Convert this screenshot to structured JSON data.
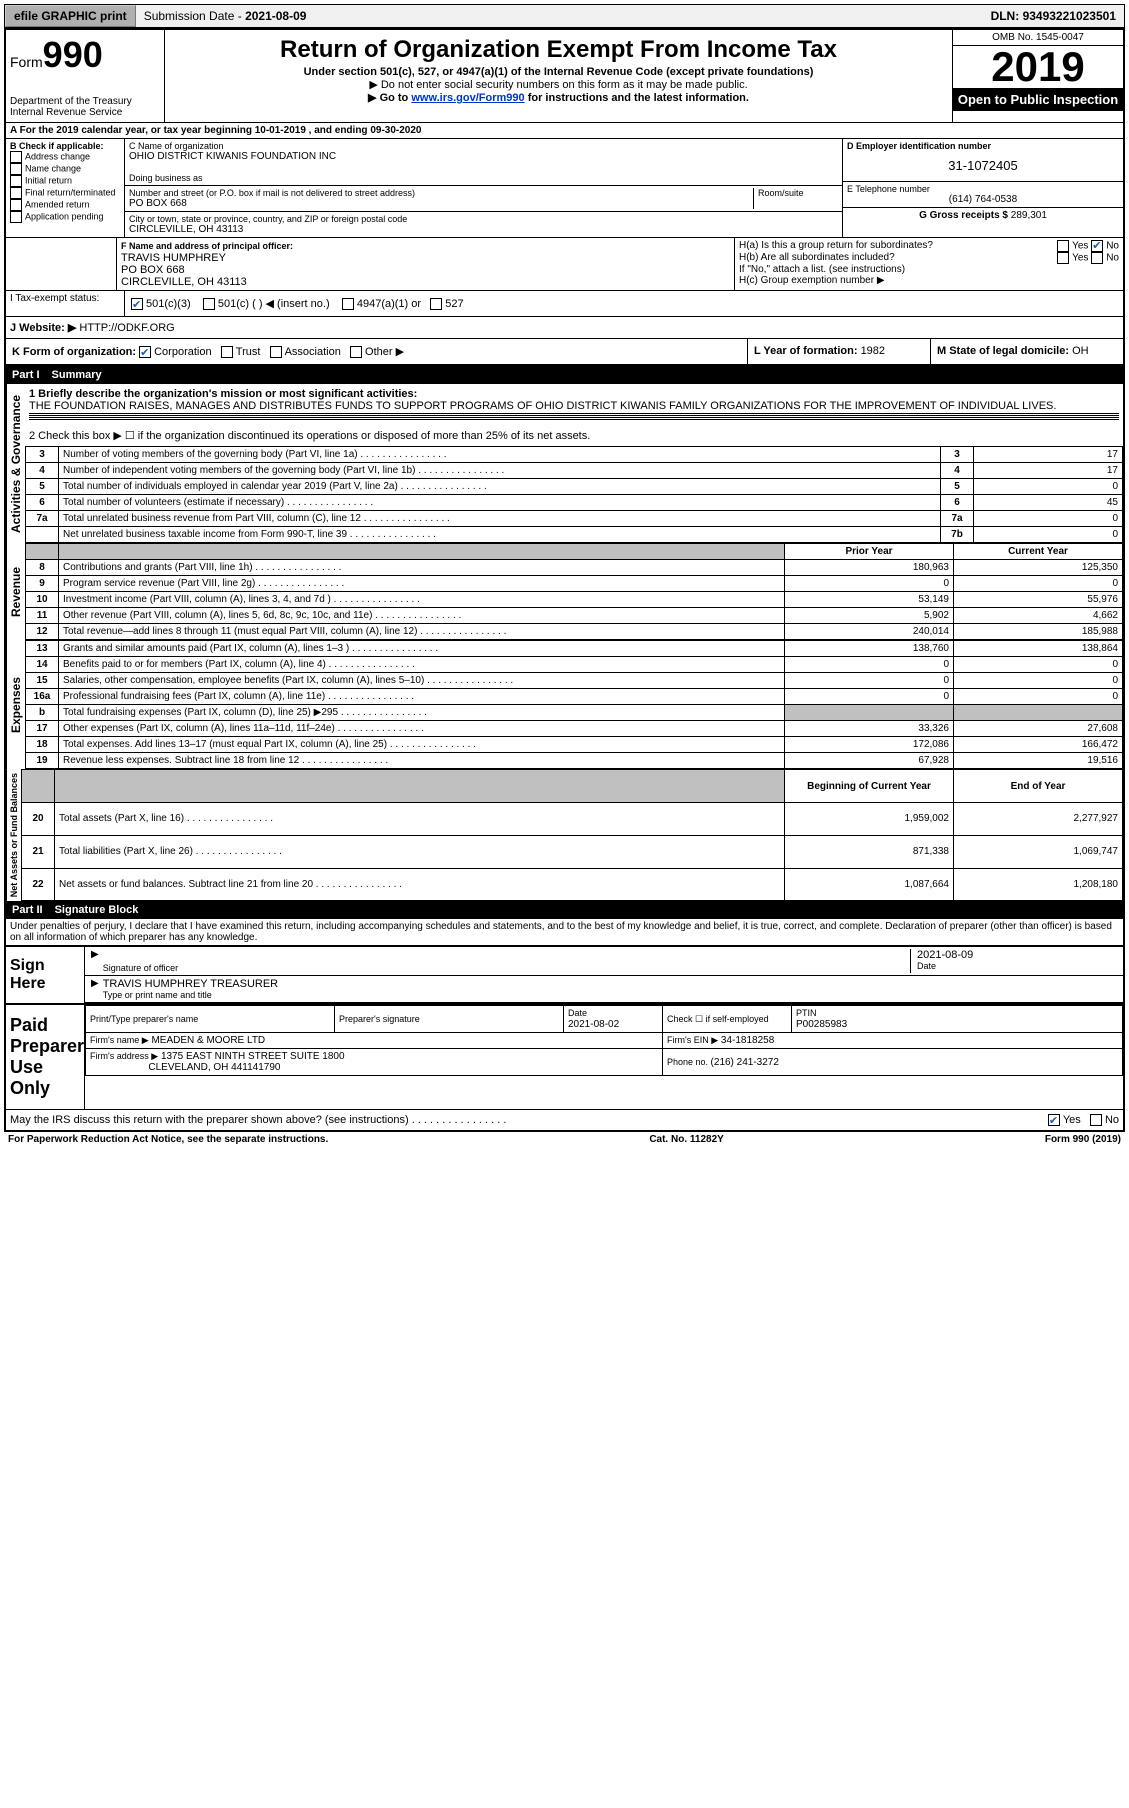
{
  "topbar": {
    "efile": "efile GRAPHIC print",
    "submission_label": "Submission Date - ",
    "submission_date": "2021-08-09",
    "dln_label": "DLN: ",
    "dln": "93493221023501"
  },
  "header": {
    "form_word": "Form",
    "form_num": "990",
    "dept": "Department of the Treasury",
    "irs": "Internal Revenue Service",
    "title": "Return of Organization Exempt From Income Tax",
    "subtitle": "Under section 501(c), 527, or 4947(a)(1) of the Internal Revenue Code (except private foundations)",
    "note1": "▶ Do not enter social security numbers on this form as it may be made public.",
    "note2_pre": "▶ Go to ",
    "note2_link": "www.irs.gov/Form990",
    "note2_post": " for instructions and the latest information.",
    "omb": "OMB No. 1545-0047",
    "year": "2019",
    "open": "Open to Public Inspection"
  },
  "sectionA": {
    "text": "A For the 2019 calendar year, or tax year beginning 10-01-2019    , and ending 09-30-2020"
  },
  "colB": {
    "title": "B Check if applicable:",
    "items": [
      "Address change",
      "Name change",
      "Initial return",
      "Final return/terminated",
      "Amended return",
      "Application pending"
    ]
  },
  "colC": {
    "name_label": "C Name of organization",
    "name": "OHIO DISTRICT KIWANIS FOUNDATION INC",
    "dba_label": "Doing business as",
    "addr_label": "Number and street (or P.O. box if mail is not delivered to street address)",
    "room_label": "Room/suite",
    "addr": "PO BOX 668",
    "city_label": "City or town, state or province, country, and ZIP or foreign postal code",
    "city": "CIRCLEVILLE, OH  43113"
  },
  "colD": {
    "ein_label": "D Employer identification number",
    "ein": "31-1072405",
    "phone_label": "E Telephone number",
    "phone": "(614) 764-0538",
    "gross_label": "G Gross receipts $ ",
    "gross": "289,301"
  },
  "sectionF": {
    "label": "F  Name and address of principal officer:",
    "name": "TRAVIS HUMPHREY",
    "addr1": "PO BOX 668",
    "addr2": "CIRCLEVILLE, OH  43113"
  },
  "sectionH": {
    "a": "H(a)  Is this a group return for subordinates?",
    "b": "H(b)  Are all subordinates included?",
    "b_note": "If \"No,\" attach a list. (see instructions)",
    "c": "H(c)  Group exemption number ▶",
    "yes": "Yes",
    "no": "No"
  },
  "sectionI": {
    "label": "I  Tax-exempt status:",
    "opts": [
      "501(c)(3)",
      "501(c) (  ) ◀ (insert no.)",
      "4947(a)(1) or",
      "527"
    ]
  },
  "sectionJ": {
    "label": "J  Website: ▶",
    "value": "HTTP://ODKF.ORG"
  },
  "sectionK": {
    "label": "K Form of organization:",
    "opts": [
      "Corporation",
      "Trust",
      "Association",
      "Other ▶"
    ]
  },
  "sectionL": {
    "label": "L Year of formation: ",
    "value": "1982"
  },
  "sectionM": {
    "label": "M State of legal domicile: ",
    "value": "OH"
  },
  "part1": {
    "header_pn": "Part I",
    "header_title": "Summary",
    "line1_label": "1  Briefly describe the organization's mission or most significant activities:",
    "line1_text": "THE FOUNDATION RAISES, MANAGES AND DISTRIBUTES FUNDS TO SUPPORT PROGRAMS OF OHIO DISTRICT KIWANIS FAMILY ORGANIZATIONS FOR THE IMPROVEMENT OF INDIVIDUAL LIVES.",
    "line2": "2   Check this box ▶ ☐  if the organization discontinued its operations or disposed of more than 25% of its net assets.",
    "gov_label": "Activities & Governance",
    "rev_label": "Revenue",
    "exp_label": "Expenses",
    "net_label": "Net Assets or Fund Balances",
    "col_prior": "Prior Year",
    "col_current": "Current Year",
    "col_boy": "Beginning of Current Year",
    "col_eoy": "End of Year",
    "rows_gov": [
      {
        "n": "3",
        "d": "Number of voting members of the governing body (Part VI, line 1a)",
        "box": "3",
        "v": "17"
      },
      {
        "n": "4",
        "d": "Number of independent voting members of the governing body (Part VI, line 1b)",
        "box": "4",
        "v": "17"
      },
      {
        "n": "5",
        "d": "Total number of individuals employed in calendar year 2019 (Part V, line 2a)",
        "box": "5",
        "v": "0"
      },
      {
        "n": "6",
        "d": "Total number of volunteers (estimate if necessary)",
        "box": "6",
        "v": "45"
      },
      {
        "n": "7a",
        "d": "Total unrelated business revenue from Part VIII, column (C), line 12",
        "box": "7a",
        "v": "0"
      },
      {
        "n": "",
        "d": "Net unrelated business taxable income from Form 990-T, line 39",
        "box": "7b",
        "v": "0"
      }
    ],
    "rows_rev": [
      {
        "n": "8",
        "d": "Contributions and grants (Part VIII, line 1h)",
        "py": "180,963",
        "cy": "125,350"
      },
      {
        "n": "9",
        "d": "Program service revenue (Part VIII, line 2g)",
        "py": "0",
        "cy": "0"
      },
      {
        "n": "10",
        "d": "Investment income (Part VIII, column (A), lines 3, 4, and 7d )",
        "py": "53,149",
        "cy": "55,976"
      },
      {
        "n": "11",
        "d": "Other revenue (Part VIII, column (A), lines 5, 6d, 8c, 9c, 10c, and 11e)",
        "py": "5,902",
        "cy": "4,662"
      },
      {
        "n": "12",
        "d": "Total revenue—add lines 8 through 11 (must equal Part VIII, column (A), line 12)",
        "py": "240,014",
        "cy": "185,988"
      }
    ],
    "rows_exp": [
      {
        "n": "13",
        "d": "Grants and similar amounts paid (Part IX, column (A), lines 1–3 )",
        "py": "138,760",
        "cy": "138,864"
      },
      {
        "n": "14",
        "d": "Benefits paid to or for members (Part IX, column (A), line 4)",
        "py": "0",
        "cy": "0"
      },
      {
        "n": "15",
        "d": "Salaries, other compensation, employee benefits (Part IX, column (A), lines 5–10)",
        "py": "0",
        "cy": "0"
      },
      {
        "n": "16a",
        "d": "Professional fundraising fees (Part IX, column (A), line 11e)",
        "py": "0",
        "cy": "0"
      },
      {
        "n": "b",
        "d": "Total fundraising expenses (Part IX, column (D), line 25) ▶295",
        "py": "__shade__",
        "cy": "__shade__"
      },
      {
        "n": "17",
        "d": "Other expenses (Part IX, column (A), lines 11a–11d, 11f–24e)",
        "py": "33,326",
        "cy": "27,608"
      },
      {
        "n": "18",
        "d": "Total expenses. Add lines 13–17 (must equal Part IX, column (A), line 25)",
        "py": "172,086",
        "cy": "166,472"
      },
      {
        "n": "19",
        "d": "Revenue less expenses. Subtract line 18 from line 12",
        "py": "67,928",
        "cy": "19,516"
      }
    ],
    "rows_net": [
      {
        "n": "20",
        "d": "Total assets (Part X, line 16)",
        "py": "1,959,002",
        "cy": "2,277,927"
      },
      {
        "n": "21",
        "d": "Total liabilities (Part X, line 26)",
        "py": "871,338",
        "cy": "1,069,747"
      },
      {
        "n": "22",
        "d": "Net assets or fund balances. Subtract line 21 from line 20",
        "py": "1,087,664",
        "cy": "1,208,180"
      }
    ]
  },
  "part2": {
    "header_pn": "Part II",
    "header_title": "Signature Block",
    "jurat": "Under penalties of perjury, I declare that I have examined this return, including accompanying schedules and statements, and to the best of my knowledge and belief, it is true, correct, and complete. Declaration of preparer (other than officer) is based on all information of which preparer has any knowledge."
  },
  "sign": {
    "label": "Sign Here",
    "sig_label": "Signature of officer",
    "date_label": "Date",
    "date": "2021-08-09",
    "name": "TRAVIS HUMPHREY  TREASURER",
    "name_label": "Type or print name and title"
  },
  "preparer": {
    "label": "Paid Preparer Use Only",
    "col_print": "Print/Type preparer's name",
    "col_sig": "Preparer's signature",
    "col_date": "Date",
    "date": "2021-08-02",
    "self_label": "Check ☐ if self-employed",
    "ptin_label": "PTIN",
    "ptin": "P00285983",
    "firm_name_label": "Firm's name    ▶",
    "firm_name": "MEADEN & MOORE LTD",
    "firm_ein_label": "Firm's EIN ▶",
    "firm_ein": "34-1818258",
    "firm_addr_label": "Firm's address ▶",
    "firm_addr1": "1375 EAST NINTH STREET SUITE 1800",
    "firm_addr2": "CLEVELAND, OH  441141790",
    "phone_label": "Phone no. ",
    "phone": "(216) 241-3272"
  },
  "discuss": {
    "q": "May the IRS discuss this return with the preparer shown above? (see instructions)",
    "yes": "Yes",
    "no": "No"
  },
  "footer": {
    "left": "For Paperwork Reduction Act Notice, see the separate instructions.",
    "mid": "Cat. No. 11282Y",
    "right": "Form 990 (2019)"
  }
}
